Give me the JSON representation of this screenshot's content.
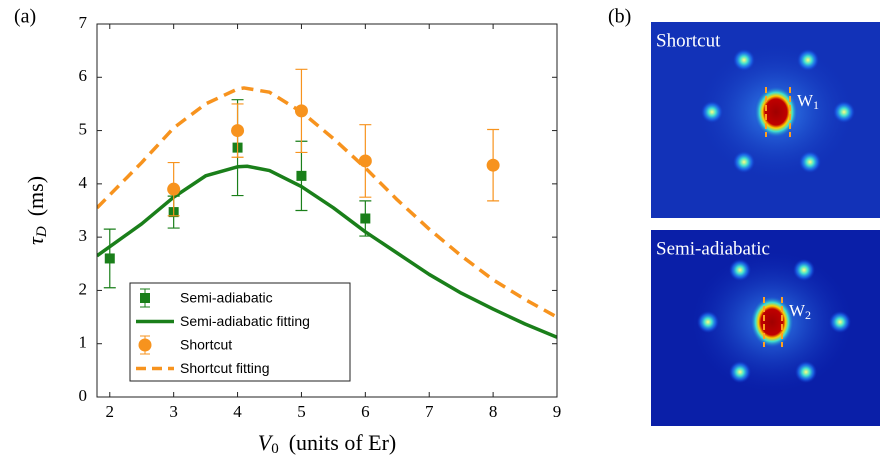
{
  "chart_data": {
    "type": "scatter",
    "panel_label": "(a)",
    "xlabel": {
      "symbol": "V",
      "sub": "0",
      "unit": "(units of Er)"
    },
    "ylabel": {
      "symbol": "τ",
      "sub": "D",
      "unit": "(ms)"
    },
    "xlim": [
      1.8,
      9
    ],
    "xticks": [
      2,
      3,
      4,
      5,
      6,
      7,
      8,
      9
    ],
    "ylim": [
      0,
      7
    ],
    "yticks": [
      0,
      1,
      2,
      3,
      4,
      5,
      6,
      7
    ],
    "legend": "lower left",
    "series": [
      {
        "name": "Semi-adiabatic",
        "kind": "errorbar",
        "marker": "square",
        "color": "#1a7f1a",
        "x": [
          2,
          3,
          4,
          5,
          6
        ],
        "values": [
          2.6,
          3.47,
          4.68,
          4.15,
          3.35
        ],
        "errors": [
          0.55,
          0.3,
          0.9,
          0.65,
          0.33
        ]
      },
      {
        "name": "Semi-adiabatic fitting",
        "kind": "line",
        "dashed": false,
        "color": "#1a7f1a",
        "x": [
          1.8,
          2.5,
          3,
          3.5,
          4,
          4.15,
          4.5,
          5,
          5.5,
          6,
          6.5,
          7,
          7.5,
          8,
          8.5,
          9
        ],
        "values": [
          2.65,
          3.25,
          3.75,
          4.15,
          4.32,
          4.33,
          4.25,
          3.95,
          3.55,
          3.1,
          2.7,
          2.3,
          1.95,
          1.65,
          1.37,
          1.12
        ]
      },
      {
        "name": "Shortcut",
        "kind": "errorbar",
        "marker": "circle",
        "color": "#f7931e",
        "x": [
          3,
          4,
          5,
          6,
          8
        ],
        "values": [
          3.9,
          5.0,
          5.37,
          4.43,
          4.35
        ],
        "errors": [
          0.5,
          0.5,
          0.78,
          0.68,
          0.67
        ]
      },
      {
        "name": "Shortcut fitting",
        "kind": "line",
        "dashed": true,
        "color": "#f7931e",
        "x": [
          1.8,
          2.5,
          3,
          3.5,
          4,
          4.1,
          4.5,
          5,
          5.5,
          6,
          6.5,
          7,
          7.5,
          8,
          8.5,
          9
        ],
        "values": [
          3.55,
          4.4,
          5.05,
          5.5,
          5.78,
          5.8,
          5.72,
          5.35,
          4.85,
          4.3,
          3.7,
          3.15,
          2.65,
          2.2,
          1.83,
          1.5
        ]
      }
    ]
  },
  "images": {
    "panel_label": "(b)",
    "panels": [
      {
        "title": "Shortcut",
        "width_label": {
          "base": "W",
          "sub": "1"
        }
      },
      {
        "title": "Semi-adiabatic",
        "width_label": {
          "base": "W",
          "sub": "2"
        }
      }
    ]
  }
}
